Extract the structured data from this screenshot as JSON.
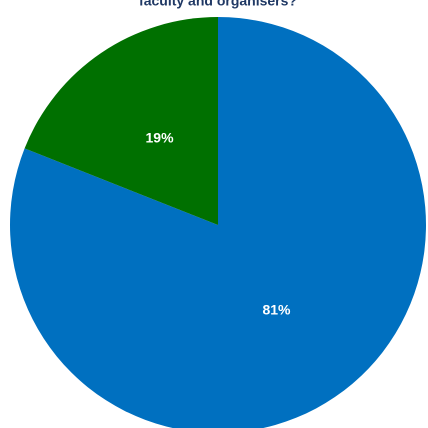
{
  "chart_data": {
    "type": "pie",
    "title": "faculty and organisers?",
    "values": [
      81,
      19
    ],
    "value_labels": [
      "81%",
      "19%"
    ],
    "colors": [
      "#0070c0",
      "#007000"
    ]
  }
}
